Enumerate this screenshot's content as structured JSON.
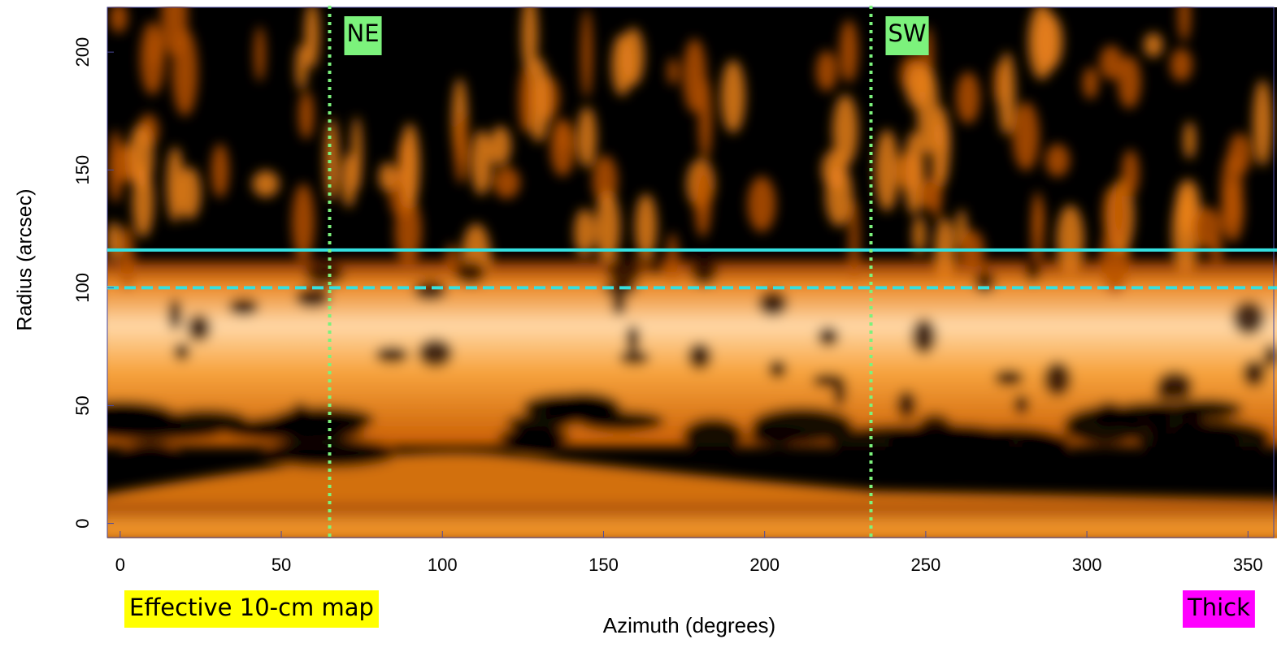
{
  "chart_data": {
    "type": "heatmap-image",
    "xlabel": "Azimuth (degrees)",
    "ylabel": "Radius (arcsec)",
    "xlim": [
      -4,
      358
    ],
    "ylim": [
      -6,
      219
    ],
    "xticks": [
      0,
      50,
      100,
      150,
      200,
      250,
      300,
      350
    ],
    "yticks": [
      0,
      50,
      100,
      150,
      200
    ],
    "reference_lines": [
      {
        "axis": "y",
        "value": 116,
        "color": "#35e0e0",
        "style": "solid"
      },
      {
        "axis": "y",
        "value": 100,
        "color": "#35e0e0",
        "style": "dashed"
      },
      {
        "axis": "x",
        "value": 65,
        "color": "#7cf27c",
        "style": "dotted",
        "label": "NE"
      },
      {
        "axis": "x",
        "value": 233,
        "color": "#7cf27c",
        "style": "dotted",
        "label": "SW"
      }
    ],
    "notes": [
      {
        "text": "Effective 10-cm map",
        "color": "#ffff00"
      },
      {
        "text": "Thick",
        "color": "#ff00ff"
      }
    ]
  }
}
